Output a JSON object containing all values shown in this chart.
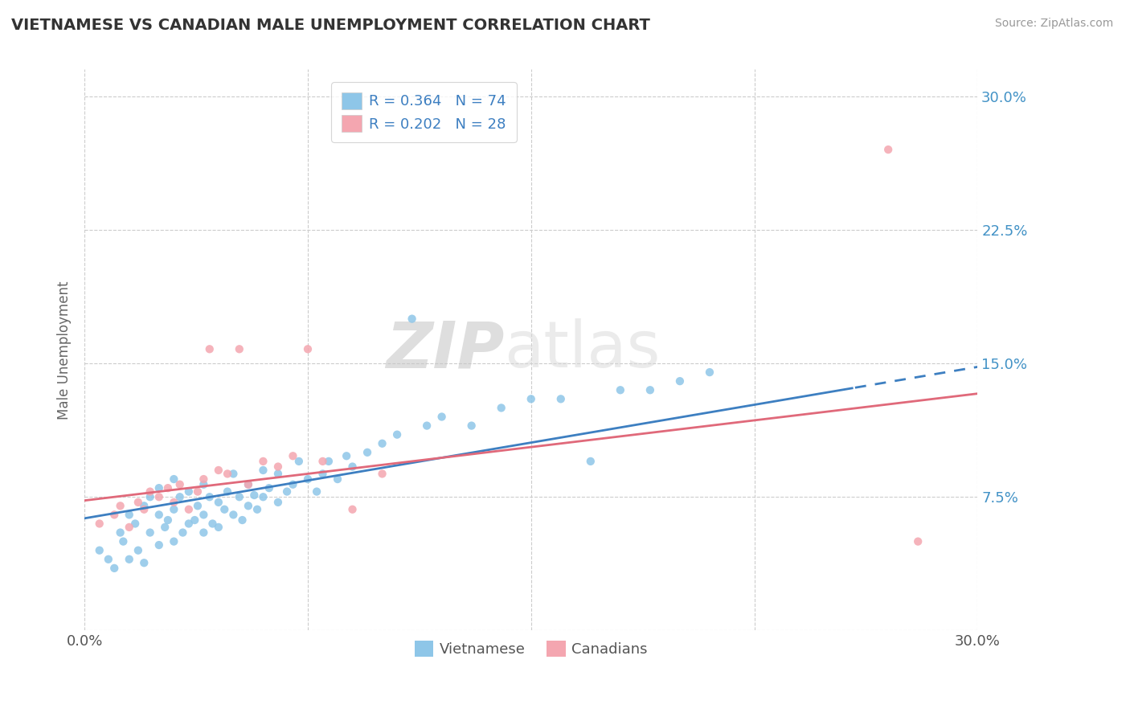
{
  "title": "VIETNAMESE VS CANADIAN MALE UNEMPLOYMENT CORRELATION CHART",
  "source": "Source: ZipAtlas.com",
  "ylabel": "Male Unemployment",
  "xlim": [
    0.0,
    0.3
  ],
  "ylim": [
    0.0,
    0.315
  ],
  "xticks": [
    0.0,
    0.075,
    0.15,
    0.225,
    0.3
  ],
  "xtick_labels": [
    "0.0%",
    "",
    "",
    "",
    "30.0%"
  ],
  "ytick_labels_right": [
    "",
    "7.5%",
    "15.0%",
    "22.5%",
    "30.0%"
  ],
  "yticks": [
    0.0,
    0.075,
    0.15,
    0.225,
    0.3
  ],
  "vietnamese_color": "#8ec6e8",
  "canadian_color": "#f4a6b0",
  "line_blue": "#3d7fc1",
  "line_pink": "#e0697a",
  "R_vietnamese": 0.364,
  "N_vietnamese": 74,
  "R_canadian": 0.202,
  "N_canadian": 28,
  "background_color": "#ffffff",
  "grid_color": "#cccccc",
  "viet_line_start_y": 0.063,
  "viet_line_end_y": 0.148,
  "can_line_start_y": 0.073,
  "can_line_end_y": 0.133,
  "viet_dash_split": 0.258,
  "vietnamese_x": [
    0.005,
    0.008,
    0.01,
    0.012,
    0.013,
    0.015,
    0.015,
    0.017,
    0.018,
    0.02,
    0.02,
    0.022,
    0.022,
    0.025,
    0.025,
    0.025,
    0.027,
    0.028,
    0.03,
    0.03,
    0.03,
    0.032,
    0.033,
    0.035,
    0.035,
    0.037,
    0.038,
    0.04,
    0.04,
    0.04,
    0.042,
    0.043,
    0.045,
    0.045,
    0.047,
    0.048,
    0.05,
    0.05,
    0.052,
    0.053,
    0.055,
    0.055,
    0.057,
    0.058,
    0.06,
    0.06,
    0.062,
    0.065,
    0.065,
    0.068,
    0.07,
    0.072,
    0.075,
    0.078,
    0.08,
    0.082,
    0.085,
    0.088,
    0.09,
    0.095,
    0.1,
    0.105,
    0.11,
    0.115,
    0.12,
    0.13,
    0.14,
    0.15,
    0.16,
    0.17,
    0.18,
    0.19,
    0.2,
    0.21
  ],
  "vietnamese_y": [
    0.045,
    0.04,
    0.035,
    0.055,
    0.05,
    0.04,
    0.065,
    0.06,
    0.045,
    0.038,
    0.07,
    0.055,
    0.075,
    0.048,
    0.065,
    0.08,
    0.058,
    0.062,
    0.068,
    0.05,
    0.085,
    0.075,
    0.055,
    0.06,
    0.078,
    0.062,
    0.07,
    0.055,
    0.065,
    0.082,
    0.075,
    0.06,
    0.072,
    0.058,
    0.068,
    0.078,
    0.065,
    0.088,
    0.075,
    0.062,
    0.07,
    0.082,
    0.076,
    0.068,
    0.075,
    0.09,
    0.08,
    0.072,
    0.088,
    0.078,
    0.082,
    0.095,
    0.085,
    0.078,
    0.088,
    0.095,
    0.085,
    0.098,
    0.092,
    0.1,
    0.105,
    0.11,
    0.175,
    0.115,
    0.12,
    0.115,
    0.125,
    0.13,
    0.13,
    0.095,
    0.135,
    0.135,
    0.14,
    0.145
  ],
  "canadian_x": [
    0.005,
    0.01,
    0.012,
    0.015,
    0.018,
    0.02,
    0.022,
    0.025,
    0.028,
    0.03,
    0.032,
    0.035,
    0.038,
    0.04,
    0.042,
    0.045,
    0.048,
    0.052,
    0.055,
    0.06,
    0.065,
    0.07,
    0.075,
    0.08,
    0.09,
    0.1,
    0.28,
    0.27
  ],
  "canadian_y": [
    0.06,
    0.065,
    0.07,
    0.058,
    0.072,
    0.068,
    0.078,
    0.075,
    0.08,
    0.072,
    0.082,
    0.068,
    0.078,
    0.085,
    0.158,
    0.09,
    0.088,
    0.158,
    0.082,
    0.095,
    0.092,
    0.098,
    0.158,
    0.095,
    0.068,
    0.088,
    0.05,
    0.27
  ]
}
